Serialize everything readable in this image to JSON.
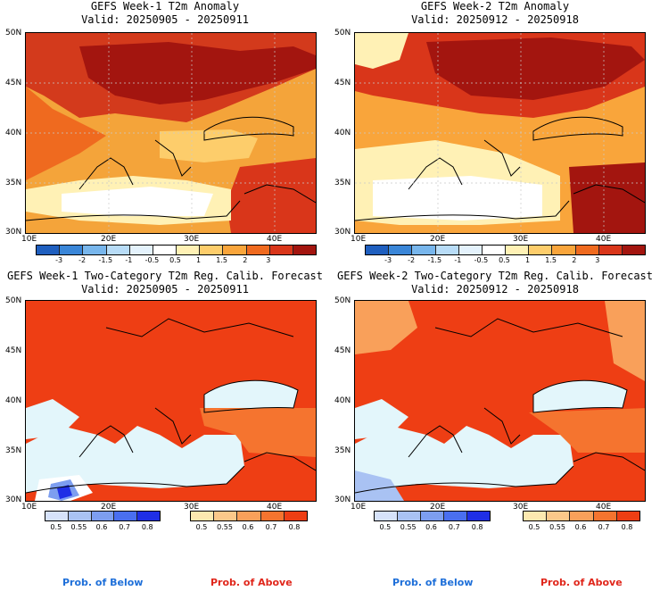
{
  "chart_data": [
    {
      "type": "heatmap",
      "title": "GEFS Week-1 T2m Anomaly",
      "subtitle": "Valid: 20250905 - 20250911",
      "x_ticks": [
        "10E",
        "20E",
        "30E",
        "40E"
      ],
      "y_ticks": [
        "50N",
        "45N",
        "40N",
        "35N",
        "30N"
      ],
      "xlim": [
        10,
        45
      ],
      "ylim": [
        30,
        50
      ],
      "colorbar": {
        "labels": [
          "-3",
          "-2",
          "-1.5",
          "-1",
          "-0.5",
          "0.5",
          "1",
          "1.5",
          "2",
          "3"
        ],
        "colors": [
          "#1f5fbf",
          "#3a86d8",
          "#78b6ec",
          "#b8dcf7",
          "#e4f2fc",
          "#ffffff",
          "#fff1b5",
          "#fdcd6b",
          "#f9a53b",
          "#ef6a1f",
          "#d9361a",
          "#a3150f"
        ]
      }
    },
    {
      "type": "heatmap",
      "title": "GEFS Week-2 T2m Anomaly",
      "subtitle": "Valid: 20250912 - 20250918",
      "x_ticks": [
        "10E",
        "20E",
        "30E",
        "40E"
      ],
      "y_ticks": [
        "50N",
        "45N",
        "40N",
        "35N",
        "30N"
      ],
      "xlim": [
        10,
        45
      ],
      "ylim": [
        30,
        50
      ],
      "colorbar": {
        "labels": [
          "-3",
          "-2",
          "-1.5",
          "-1",
          "-0.5",
          "0.5",
          "1",
          "1.5",
          "2",
          "3"
        ],
        "colors": [
          "#1f5fbf",
          "#3a86d8",
          "#78b6ec",
          "#b8dcf7",
          "#e4f2fc",
          "#ffffff",
          "#fff1b5",
          "#fdcd6b",
          "#f9a53b",
          "#ef6a1f",
          "#d9361a",
          "#a3150f"
        ]
      }
    },
    {
      "type": "heatmap",
      "title": "GEFS Week-1 Two-Category T2m Reg. Calib. Forecast",
      "subtitle": "Valid: 20250905 - 20250911",
      "x_ticks": [
        "10E",
        "20E",
        "30E",
        "40E"
      ],
      "y_ticks": [
        "50N",
        "45N",
        "40N",
        "35N",
        "30N"
      ],
      "xlim": [
        10,
        45
      ],
      "ylim": [
        30,
        50
      ],
      "colorbar_below": {
        "labels": [
          "0.5",
          "0.55",
          "0.6",
          "0.7",
          "0.8"
        ],
        "colors": [
          "#d6e2fa",
          "#a9c2f3",
          "#7d9ef0",
          "#4a6ff0",
          "#1f2fe6"
        ],
        "caption": "Prob. of Below"
      },
      "colorbar_above": {
        "labels": [
          "0.5",
          "0.55",
          "0.6",
          "0.7",
          "0.8"
        ],
        "colors": [
          "#fde9b0",
          "#fbc88a",
          "#f9a05a",
          "#f5742f",
          "#ee3e14"
        ],
        "caption": "Prob. of Above"
      }
    },
    {
      "type": "heatmap",
      "title": "GEFS Week-2 Two-Category T2m Reg. Calib. Forecast",
      "subtitle": "Valid: 20250912 - 20250918",
      "x_ticks": [
        "10E",
        "20E",
        "30E",
        "40E"
      ],
      "y_ticks": [
        "50N",
        "45N",
        "40N",
        "35N",
        "30N"
      ],
      "xlim": [
        10,
        45
      ],
      "ylim": [
        30,
        50
      ],
      "colorbar_below": {
        "labels": [
          "0.5",
          "0.55",
          "0.6",
          "0.7",
          "0.8"
        ],
        "colors": [
          "#d6e2fa",
          "#a9c2f3",
          "#7d9ef0",
          "#4a6ff0",
          "#1f2fe6"
        ],
        "caption": "Prob. of Below"
      },
      "colorbar_above": {
        "labels": [
          "0.5",
          "0.55",
          "0.6",
          "0.7",
          "0.8"
        ],
        "colors": [
          "#fde9b0",
          "#fbc88a",
          "#f9a05a",
          "#f5742f",
          "#ee3e14"
        ],
        "caption": "Prob. of Above"
      }
    }
  ],
  "colors": {
    "sea_light": "#e3f6fb",
    "below_caption": "#1e6fd9",
    "above_caption": "#e0261b"
  }
}
